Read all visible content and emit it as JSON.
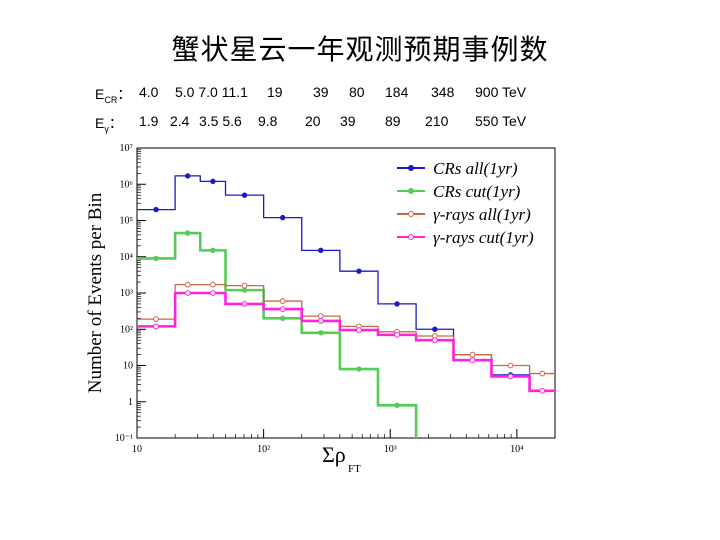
{
  "title": "蟹状星云一年观测预期事例数",
  "energy_table": {
    "cr_label_main": "E",
    "cr_label_sub": "CR",
    "cr_sep": "：",
    "cr_values": [
      "4.0",
      "5.0 7.0 11.1",
      "19",
      "39",
      "80",
      "184",
      "348",
      "900 TeV"
    ],
    "g_label_main": "E",
    "g_label_sub": "γ",
    "g_sep": "：",
    "g_values": [
      "1.9",
      "2.4",
      "3.5 5.6",
      "9.8",
      "20",
      "39",
      "89",
      "210",
      "550 TeV"
    ]
  },
  "chart_data": {
    "type": "line",
    "style": "step histogram, log-log",
    "ylabel": "Number of Events per Bin",
    "xlabel_main": "Σρ",
    "xlabel_sub": "FT",
    "x_scale": "log",
    "y_scale": "log",
    "xlim": [
      10,
      20000
    ],
    "ylim": [
      0.1,
      10000000
    ],
    "x_tick_labels": [
      "10",
      "10²",
      "10³",
      "10⁴"
    ],
    "y_tick_labels": [
      "10⁻¹",
      "1",
      "10",
      "10²",
      "10³",
      "10⁴",
      "10⁵",
      "10⁶",
      "10⁷"
    ],
    "bin_edges": [
      10,
      20,
      31.6,
      50,
      100,
      200,
      400,
      800,
      1600,
      3160,
      6300,
      12600,
      20000
    ],
    "legend_position": "top-right",
    "series": [
      {
        "name": "CRs all(1yr)",
        "color": "#1a1acc",
        "marker": "filled-circle",
        "values": [
          200000,
          1700000,
          1200000,
          500000,
          120000,
          15000,
          4000,
          500,
          100,
          20,
          5.5,
          2
        ]
      },
      {
        "name": "CRs cut(1yr)",
        "color": "#55cc55",
        "marker": "filled-circle",
        "values": [
          9000,
          45000,
          15000,
          1200,
          200,
          80,
          8,
          0.8,
          null,
          null,
          null,
          null
        ]
      },
      {
        "name": "γ-rays all(1yr)",
        "color": "#cc6644",
        "marker": "open-circle",
        "values": [
          190,
          1700,
          1700,
          1600,
          600,
          230,
          120,
          85,
          65,
          20,
          10,
          6
        ]
      },
      {
        "name": "γ-rays cut(1yr)",
        "color": "#ff22dd",
        "marker": "open-circle",
        "values": [
          120,
          1000,
          1000,
          500,
          360,
          170,
          95,
          70,
          50,
          14,
          5,
          2
        ]
      }
    ]
  }
}
